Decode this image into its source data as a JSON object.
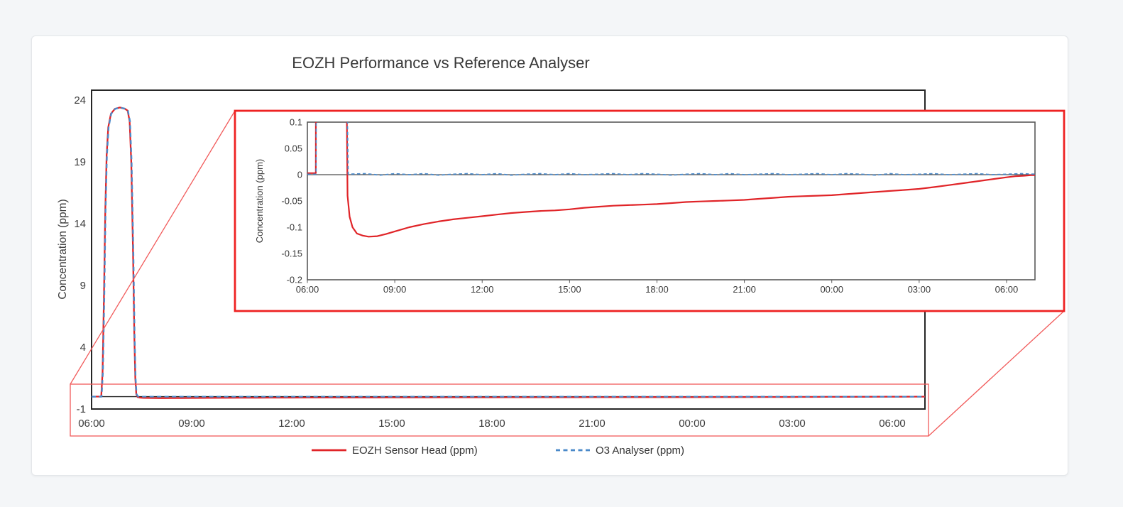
{
  "page": {
    "background": "#f4f6f8",
    "card_background": "#ffffff"
  },
  "chart_data": {
    "type": "line",
    "title": "EOZH Performance vs Reference Analyser",
    "xlabel": "",
    "ylabel": "Concentration (ppm)",
    "x_tick_hours": [
      0,
      3,
      6,
      9,
      12,
      15,
      18,
      21,
      24
    ],
    "x_tick_labels": [
      "06:00",
      "09:00",
      "12:00",
      "15:00",
      "18:00",
      "21:00",
      "00:00",
      "03:00",
      "06:00"
    ],
    "main_axis": {
      "ylabel": "Concentration (ppm)",
      "y_tick_values": [
        24,
        19,
        14,
        9,
        4,
        -1
      ],
      "y_tick_labels": [
        "24",
        "19",
        "14",
        "9",
        "4",
        "-1"
      ],
      "ylim": [
        -1,
        24
      ],
      "xlim_hours": [
        0,
        25
      ],
      "grid": false
    },
    "inset_axis": {
      "ylabel": "Concentration (ppm)",
      "y_tick_values": [
        0.1,
        0.05,
        0,
        -0.05,
        -0.1,
        -0.15,
        -0.2
      ],
      "y_tick_labels": [
        "0.1",
        "0.05",
        "0",
        "-0.05",
        "-0.1",
        "-0.15",
        "-0.2"
      ],
      "ylim": [
        -0.2,
        0.1
      ],
      "xlim_hours": [
        0,
        25
      ],
      "grid": false,
      "description": "Zoomed view of the near-zero baseline region of the same two series"
    },
    "series": [
      {
        "name": "EOZH Sensor Head (ppm)",
        "color": "#e02428",
        "style": "solid",
        "points": [
          [
            0,
            0.003
          ],
          [
            0.29,
            0.003
          ],
          [
            0.33,
            2
          ],
          [
            0.37,
            8
          ],
          [
            0.41,
            15
          ],
          [
            0.45,
            19.5
          ],
          [
            0.5,
            21.8
          ],
          [
            0.58,
            22.9
          ],
          [
            0.7,
            23.3
          ],
          [
            0.85,
            23.4
          ],
          [
            1.0,
            23.3
          ],
          [
            1.08,
            23.15
          ],
          [
            1.14,
            22.3
          ],
          [
            1.19,
            19
          ],
          [
            1.24,
            12
          ],
          [
            1.28,
            5
          ],
          [
            1.31,
            1.5
          ],
          [
            1.34,
            0.2
          ],
          [
            1.38,
            -0.04
          ],
          [
            1.45,
            -0.08
          ],
          [
            1.55,
            -0.1
          ],
          [
            1.7,
            -0.112
          ],
          [
            1.9,
            -0.116
          ],
          [
            2.1,
            -0.118
          ],
          [
            2.4,
            -0.117
          ],
          [
            2.7,
            -0.113
          ],
          [
            3,
            -0.108
          ],
          [
            3.5,
            -0.1
          ],
          [
            4,
            -0.094
          ],
          [
            4.5,
            -0.089
          ],
          [
            5,
            -0.085
          ],
          [
            5.5,
            -0.082
          ],
          [
            6,
            -0.079
          ],
          [
            6.5,
            -0.076
          ],
          [
            7,
            -0.073
          ],
          [
            7.5,
            -0.071
          ],
          [
            8,
            -0.069
          ],
          [
            8.5,
            -0.068
          ],
          [
            9,
            -0.066
          ],
          [
            9.5,
            -0.063
          ],
          [
            10,
            -0.061
          ],
          [
            10.5,
            -0.059
          ],
          [
            11,
            -0.058
          ],
          [
            11.5,
            -0.057
          ],
          [
            12,
            -0.056
          ],
          [
            12.5,
            -0.054
          ],
          [
            13,
            -0.052
          ],
          [
            13.5,
            -0.051
          ],
          [
            14,
            -0.05
          ],
          [
            14.5,
            -0.049
          ],
          [
            15,
            -0.048
          ],
          [
            15.5,
            -0.046
          ],
          [
            16,
            -0.044
          ],
          [
            16.5,
            -0.042
          ],
          [
            17,
            -0.041
          ],
          [
            17.5,
            -0.04
          ],
          [
            18,
            -0.039
          ],
          [
            18.5,
            -0.037
          ],
          [
            19,
            -0.035
          ],
          [
            19.5,
            -0.033
          ],
          [
            20,
            -0.031
          ],
          [
            20.5,
            -0.029
          ],
          [
            21,
            -0.027
          ],
          [
            21.3,
            -0.025
          ],
          [
            21.6,
            -0.023
          ],
          [
            22,
            -0.02
          ],
          [
            22.4,
            -0.017
          ],
          [
            22.8,
            -0.014
          ],
          [
            23.2,
            -0.011
          ],
          [
            23.6,
            -0.008
          ],
          [
            24,
            -0.005
          ],
          [
            24.3,
            -0.003
          ],
          [
            24.6,
            -0.002
          ],
          [
            24.85,
            -0.001
          ],
          [
            25,
            -0.001
          ]
        ]
      },
      {
        "name": "O3 Analyser (ppm)",
        "color": "#4a89c9",
        "style": "dashed",
        "points": [
          [
            0,
            0.001
          ],
          [
            0.3,
            0.001
          ],
          [
            0.34,
            2
          ],
          [
            0.38,
            8
          ],
          [
            0.42,
            15
          ],
          [
            0.46,
            19.5
          ],
          [
            0.51,
            21.8
          ],
          [
            0.59,
            22.9
          ],
          [
            0.71,
            23.3
          ],
          [
            0.86,
            23.4
          ],
          [
            1.01,
            23.3
          ],
          [
            1.09,
            23.15
          ],
          [
            1.15,
            22.3
          ],
          [
            1.2,
            19
          ],
          [
            1.25,
            12
          ],
          [
            1.29,
            5
          ],
          [
            1.32,
            1.5
          ],
          [
            1.35,
            0.2
          ],
          [
            1.4,
            0.001
          ],
          [
            2,
            0.002
          ],
          [
            2.5,
            -0.001
          ],
          [
            3,
            0.002
          ],
          [
            3.5,
            0
          ],
          [
            4,
            0.002
          ],
          [
            4.5,
            -0.001
          ],
          [
            5,
            0.001
          ],
          [
            5.5,
            0.002
          ],
          [
            6,
            0
          ],
          [
            6.5,
            0.002
          ],
          [
            7,
            -0.001
          ],
          [
            7.5,
            0.001
          ],
          [
            8,
            0.002
          ],
          [
            8.5,
            0
          ],
          [
            9,
            0.002
          ],
          [
            9.5,
            0
          ],
          [
            10,
            0.001
          ],
          [
            10.5,
            0.002
          ],
          [
            11,
            0
          ],
          [
            11.5,
            0.002
          ],
          [
            12,
            0.001
          ],
          [
            12.5,
            -0.001
          ],
          [
            13,
            0.001
          ],
          [
            13.5,
            0.002
          ],
          [
            14,
            0
          ],
          [
            14.5,
            0.002
          ],
          [
            15,
            0
          ],
          [
            15.5,
            0.001
          ],
          [
            16,
            0.002
          ],
          [
            16.5,
            0
          ],
          [
            17,
            0.001
          ],
          [
            17.5,
            0.002
          ],
          [
            18,
            0
          ],
          [
            18.5,
            0.002
          ],
          [
            19,
            0.001
          ],
          [
            19.5,
            -0.001
          ],
          [
            20,
            0.002
          ],
          [
            20.5,
            0
          ],
          [
            21,
            0.001
          ],
          [
            21.5,
            0.002
          ],
          [
            22,
            0
          ],
          [
            22.5,
            0.001
          ],
          [
            23,
            0.002
          ],
          [
            23.5,
            0
          ],
          [
            24,
            0.001
          ],
          [
            24.5,
            0.002
          ],
          [
            25,
            0.001
          ]
        ]
      }
    ],
    "legend": {
      "position": "bottom-center",
      "entries": [
        "EOZH Sensor Head (ppm)",
        "O3 Analyser (ppm)"
      ]
    },
    "annotations": {
      "peak_value_ppm": 23.4,
      "peak_window": "06:17-07:15",
      "inset_min_ppm": -0.118,
      "inset_min_time": "08:05"
    },
    "colors": {
      "callout_box": "#ee2222",
      "callout_thin": "#f15b5b",
      "main_axis_stroke": "#262626",
      "inset_axis_stroke": "#595959"
    }
  }
}
